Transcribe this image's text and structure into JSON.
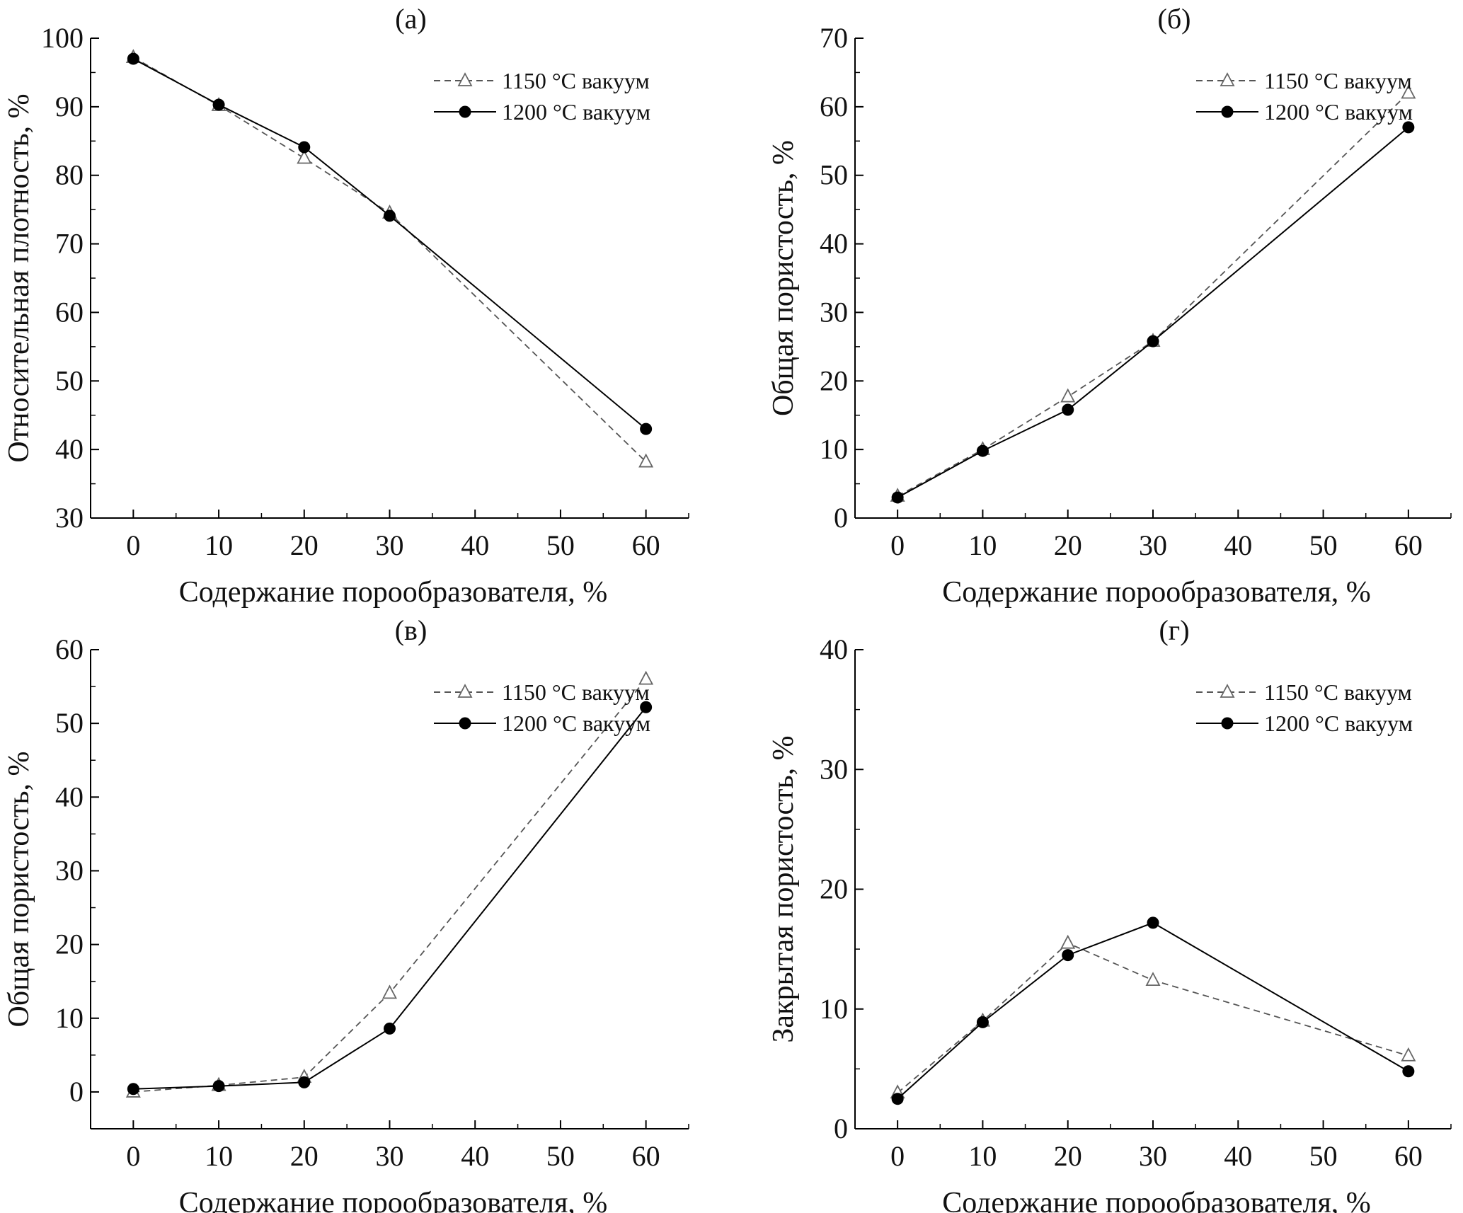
{
  "chart_data": [
    {
      "type": "line",
      "panel_label": "(а)",
      "xlabel": "Содержание порообразователя, %",
      "ylabel": "Относительная плотность, %",
      "xlim": [
        -5,
        65
      ],
      "ylim": [
        30,
        100
      ],
      "xticks": [
        0,
        10,
        20,
        30,
        40,
        50,
        60
      ],
      "yticks": [
        30,
        40,
        50,
        60,
        70,
        80,
        90,
        100
      ],
      "grid": false,
      "legend": "top-right",
      "x": [
        0,
        10,
        20,
        30,
        60
      ],
      "series": [
        {
          "name": "1150 °C вакуум",
          "marker": "open-triangle",
          "line": "dashed",
          "color": "#555555",
          "values": [
            97.2,
            90.2,
            82.5,
            74.5,
            38.2
          ]
        },
        {
          "name": "1200 °C вакуум",
          "marker": "filled-circle",
          "line": "solid",
          "color": "#000000",
          "values": [
            97.0,
            90.3,
            84.1,
            74.1,
            43.0
          ]
        }
      ]
    },
    {
      "type": "line",
      "panel_label": "(б)",
      "xlabel": "Содержание порообразователя, %",
      "ylabel": "Общая пористость, %",
      "xlim": [
        -5,
        65
      ],
      "ylim": [
        0,
        70
      ],
      "xticks": [
        0,
        10,
        20,
        30,
        40,
        50,
        60
      ],
      "yticks": [
        0,
        10,
        20,
        30,
        40,
        50,
        60,
        70
      ],
      "grid": false,
      "legend": "top-right",
      "x": [
        0,
        10,
        20,
        30,
        60
      ],
      "series": [
        {
          "name": "1150 °C вакуум",
          "marker": "open-triangle",
          "line": "dashed",
          "color": "#555555",
          "values": [
            3.2,
            10.0,
            17.7,
            25.8,
            62.0
          ]
        },
        {
          "name": "1200 °C вакуум",
          "marker": "filled-circle",
          "line": "solid",
          "color": "#000000",
          "values": [
            3.0,
            9.8,
            15.8,
            25.8,
            57.0
          ]
        }
      ]
    },
    {
      "type": "line",
      "panel_label": "(в)",
      "xlabel": "Содержание порообразователя, %",
      "ylabel": "Общая пористость, %",
      "xlim": [
        -5,
        65
      ],
      "ylim": [
        -5,
        60
      ],
      "xticks": [
        0,
        10,
        20,
        30,
        40,
        50,
        60
      ],
      "yticks": [
        0,
        10,
        20,
        30,
        40,
        50,
        60
      ],
      "grid": false,
      "legend": "top-right",
      "x": [
        0,
        10,
        20,
        30,
        60
      ],
      "series": [
        {
          "name": "1150 °C вакуум",
          "marker": "open-triangle",
          "line": "dashed",
          "color": "#555555",
          "values": [
            0.0,
            0.9,
            2.0,
            13.4,
            56.0
          ]
        },
        {
          "name": "1200 °C вакуум",
          "marker": "filled-circle",
          "line": "solid",
          "color": "#000000",
          "values": [
            0.4,
            0.8,
            1.3,
            8.6,
            52.2
          ]
        }
      ]
    },
    {
      "type": "line",
      "panel_label": "(г)",
      "xlabel": "Содержание порообразователя, %",
      "ylabel": "Закрытая пористость, %",
      "xlim": [
        -5,
        65
      ],
      "ylim": [
        0,
        40
      ],
      "xticks": [
        0,
        10,
        20,
        30,
        40,
        50,
        60
      ],
      "yticks": [
        0,
        10,
        20,
        30,
        40
      ],
      "grid": false,
      "legend": "top-right",
      "x": [
        0,
        10,
        20,
        30,
        60
      ],
      "series": [
        {
          "name": "1150 °C вакуум",
          "marker": "open-triangle",
          "line": "dashed",
          "color": "#555555",
          "values": [
            3.0,
            9.0,
            15.5,
            12.4,
            6.1
          ]
        },
        {
          "name": "1200 °C вакуум",
          "marker": "filled-circle",
          "line": "solid",
          "color": "#000000",
          "values": [
            2.5,
            8.9,
            14.5,
            17.2,
            4.8
          ]
        }
      ]
    }
  ]
}
